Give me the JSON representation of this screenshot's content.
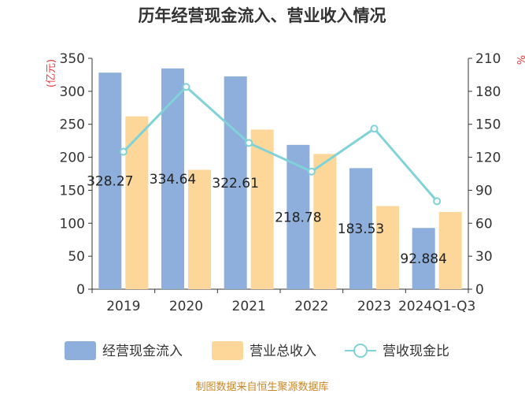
{
  "chart_data": {
    "type": "bar",
    "title": "历年经营现金流入、营业收入情况",
    "categories": [
      "2019",
      "2020",
      "2021",
      "2022",
      "2023",
      "2024Q1-Q3"
    ],
    "series": [
      {
        "name": "经营现金流入",
        "type": "bar",
        "axis": "left",
        "color": "#8eaedb",
        "values": [
          328.27,
          334.64,
          322.61,
          218.78,
          183.53,
          92.88
        ],
        "labels": [
          "328.27",
          "334.64",
          "322.61",
          "218.78",
          "183.53",
          "92.884"
        ]
      },
      {
        "name": "营业总收入",
        "type": "bar",
        "axis": "left",
        "color": "#fdd79a",
        "values": [
          262,
          181,
          242,
          205,
          126,
          117
        ]
      },
      {
        "name": "营收现金比",
        "type": "line",
        "axis": "right",
        "color": "#7fd3d8",
        "values": [
          125,
          184,
          133,
          107,
          146,
          80
        ]
      }
    ],
    "left_axis": {
      "label": "(亿元)",
      "ylim": [
        0,
        350
      ],
      "ticks": [
        "0",
        "50",
        "100",
        "150",
        "200",
        "250",
        "300",
        "350"
      ]
    },
    "right_axis": {
      "label": "%",
      "ylim": [
        0,
        210
      ],
      "ticks": [
        "0",
        "30",
        "60",
        "90",
        "120",
        "150",
        "180",
        "210"
      ]
    },
    "legend": [
      "经营现金流入",
      "营业总收入",
      "营收现金比"
    ],
    "source": "制图数据来自恒生聚源数据库"
  }
}
